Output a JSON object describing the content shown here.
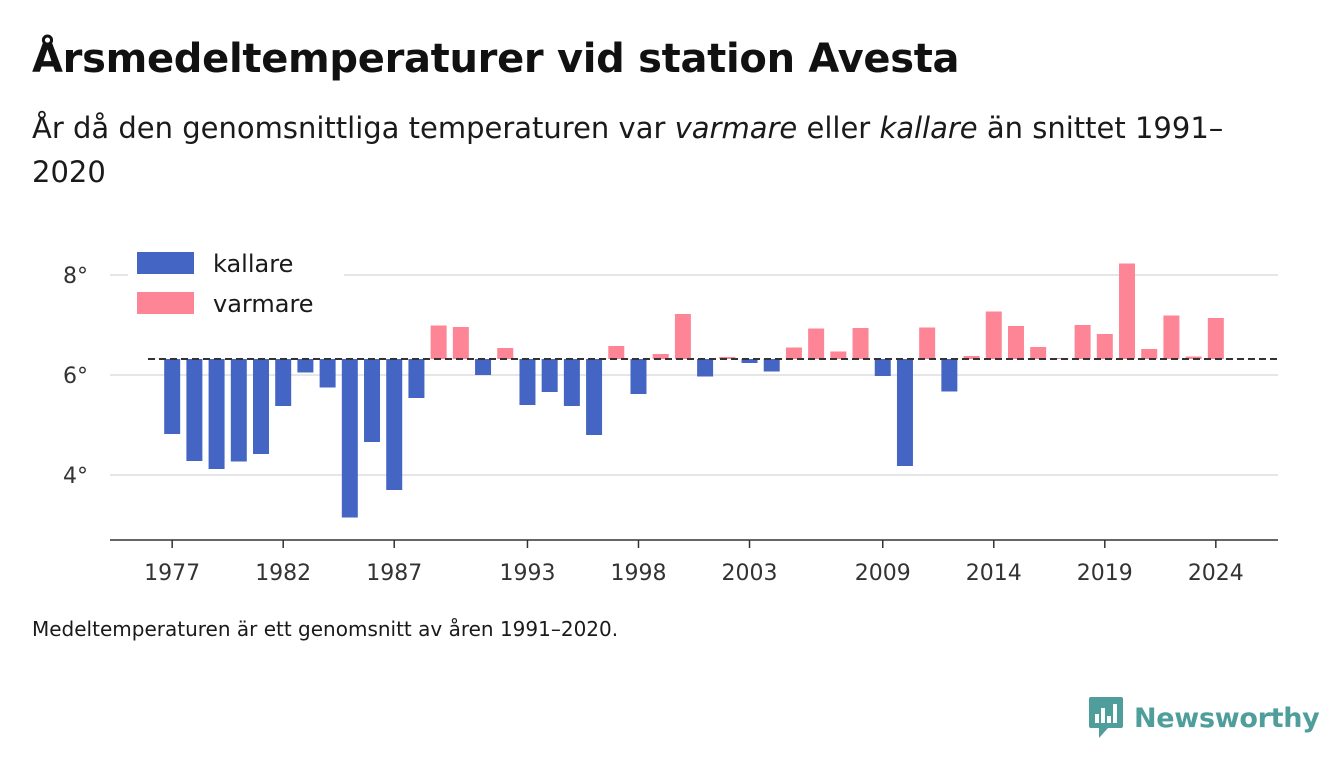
{
  "title": "Årsmedeltemperaturer vid station Avesta",
  "subtitle": {
    "part1": "År då den genomsnittliga temperaturen var ",
    "warm": "varmare",
    "part2": " eller ",
    "cold": "kallare",
    "part3": " än snittet 1991–2020"
  },
  "footnote": "Medeltemperaturen är ett genomsnitt av åren 1991–2020.",
  "brand": {
    "name": "Newsworthy",
    "icon": "newsworthy-logo-icon",
    "color": "#4f9e9b"
  },
  "chart_data": {
    "type": "bar",
    "baseline": 6.32,
    "ylim": [
      2.7,
      8.9
    ],
    "yticks": [
      4,
      6,
      8
    ],
    "ytick_suffix": "°",
    "xlim": [
      1974.2,
      2026.8
    ],
    "xticks": [
      1977,
      1982,
      1987,
      1993,
      1998,
      2003,
      2009,
      2014,
      2019,
      2024
    ],
    "grid": true,
    "legend_position": "top-left",
    "series": [
      {
        "name": "kallare",
        "color": "#4465c3"
      },
      {
        "name": "varmare",
        "color": "#fd8595"
      }
    ],
    "years": [
      1977,
      1978,
      1979,
      1980,
      1981,
      1982,
      1983,
      1984,
      1985,
      1986,
      1987,
      1988,
      1989,
      1990,
      1991,
      1992,
      1993,
      1994,
      1995,
      1996,
      1997,
      1998,
      1999,
      2000,
      2001,
      2002,
      2003,
      2004,
      2005,
      2006,
      2007,
      2008,
      2009,
      2010,
      2011,
      2012,
      2013,
      2014,
      2015,
      2016,
      2017,
      2018,
      2019,
      2020,
      2021,
      2022,
      2023,
      2024
    ],
    "values": [
      4.82,
      4.28,
      4.12,
      4.27,
      4.42,
      5.38,
      6.05,
      5.75,
      3.15,
      4.66,
      3.7,
      5.54,
      6.99,
      6.96,
      6.0,
      6.54,
      5.4,
      5.66,
      5.38,
      4.8,
      6.58,
      5.62,
      6.42,
      7.22,
      5.97,
      6.36,
      6.24,
      6.07,
      6.55,
      6.93,
      6.47,
      6.94,
      5.98,
      4.18,
      6.95,
      5.67,
      6.38,
      7.27,
      6.98,
      6.56,
      6.34,
      7.0,
      6.82,
      8.23,
      6.52,
      7.19,
      6.37,
      7.14
    ]
  }
}
